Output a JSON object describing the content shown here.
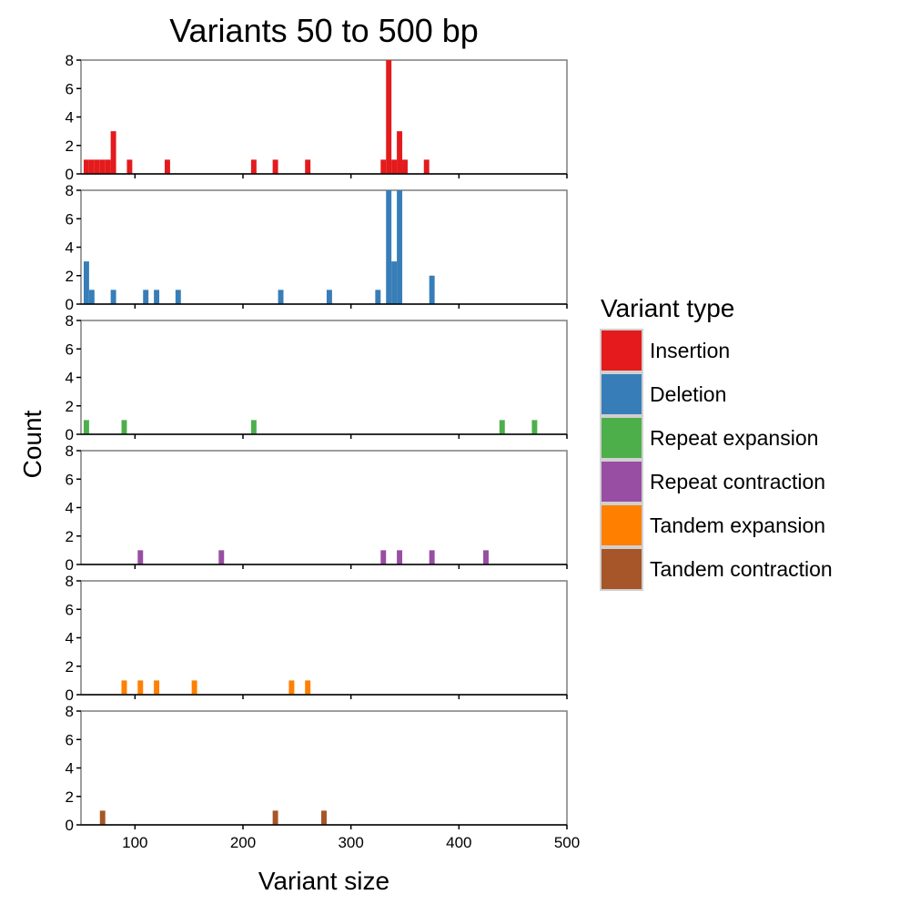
{
  "chart_data": {
    "type": "bar",
    "title": "Variants 50 to 500 bp",
    "xlabel": "Variant size",
    "ylabel": "Count",
    "xlim": [
      50,
      500
    ],
    "ylim": [
      0,
      8
    ],
    "bin_width": 5,
    "x_ticks": [
      100,
      200,
      300,
      400,
      500
    ],
    "y_ticks": [
      0,
      2,
      4,
      6,
      8
    ],
    "grid": false,
    "legend": {
      "title": "Variant type",
      "position": "right"
    },
    "series": [
      {
        "name": "Insertion",
        "color": "#E41A1C",
        "bins": [
          {
            "x": 55,
            "count": 1
          },
          {
            "x": 60,
            "count": 1
          },
          {
            "x": 65,
            "count": 1
          },
          {
            "x": 70,
            "count": 1
          },
          {
            "x": 75,
            "count": 1
          },
          {
            "x": 80,
            "count": 3
          },
          {
            "x": 95,
            "count": 1
          },
          {
            "x": 130,
            "count": 1
          },
          {
            "x": 210,
            "count": 1
          },
          {
            "x": 230,
            "count": 1
          },
          {
            "x": 260,
            "count": 1
          },
          {
            "x": 330,
            "count": 1
          },
          {
            "x": 335,
            "count": 8
          },
          {
            "x": 340,
            "count": 1
          },
          {
            "x": 345,
            "count": 3
          },
          {
            "x": 350,
            "count": 1
          },
          {
            "x": 370,
            "count": 1
          }
        ]
      },
      {
        "name": "Deletion",
        "color": "#377EB8",
        "bins": [
          {
            "x": 55,
            "count": 3
          },
          {
            "x": 60,
            "count": 1
          },
          {
            "x": 80,
            "count": 1
          },
          {
            "x": 110,
            "count": 1
          },
          {
            "x": 120,
            "count": 1
          },
          {
            "x": 140,
            "count": 1
          },
          {
            "x": 235,
            "count": 1
          },
          {
            "x": 280,
            "count": 1
          },
          {
            "x": 325,
            "count": 1
          },
          {
            "x": 335,
            "count": 8
          },
          {
            "x": 340,
            "count": 3
          },
          {
            "x": 345,
            "count": 8
          },
          {
            "x": 375,
            "count": 2
          }
        ]
      },
      {
        "name": "Repeat expansion",
        "color": "#4DAF4A",
        "bins": [
          {
            "x": 55,
            "count": 1
          },
          {
            "x": 90,
            "count": 1
          },
          {
            "x": 210,
            "count": 1
          },
          {
            "x": 440,
            "count": 1
          },
          {
            "x": 470,
            "count": 1
          }
        ]
      },
      {
        "name": "Repeat contraction",
        "color": "#984EA3",
        "bins": [
          {
            "x": 105,
            "count": 1
          },
          {
            "x": 180,
            "count": 1
          },
          {
            "x": 330,
            "count": 1
          },
          {
            "x": 345,
            "count": 1
          },
          {
            "x": 375,
            "count": 1
          },
          {
            "x": 425,
            "count": 1
          }
        ]
      },
      {
        "name": "Tandem expansion",
        "color": "#FF7F00",
        "bins": [
          {
            "x": 90,
            "count": 1
          },
          {
            "x": 105,
            "count": 1
          },
          {
            "x": 120,
            "count": 1
          },
          {
            "x": 155,
            "count": 1
          },
          {
            "x": 245,
            "count": 1
          },
          {
            "x": 260,
            "count": 1
          }
        ]
      },
      {
        "name": "Tandem contraction",
        "color": "#A65628",
        "bins": [
          {
            "x": 70,
            "count": 1
          },
          {
            "x": 230,
            "count": 1
          },
          {
            "x": 275,
            "count": 1
          }
        ]
      }
    ]
  }
}
